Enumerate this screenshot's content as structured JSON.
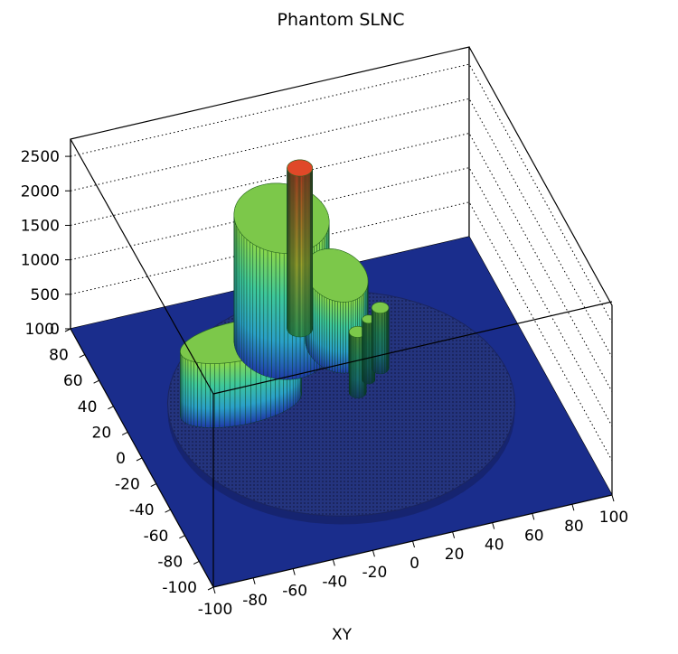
{
  "chart_data": {
    "type": "lego3d",
    "title": "Phantom SLNC",
    "xlabel": "XY",
    "ylabel": "",
    "zlabel": "",
    "x_ticks": [
      "-100",
      "-80",
      "-60",
      "-40",
      "-20",
      "0",
      "20",
      "40",
      "60",
      "80",
      "100"
    ],
    "y_ticks": [
      "-100",
      "-80",
      "-60",
      "-40",
      "-20",
      "0",
      "20",
      "40",
      "60",
      "80",
      "100"
    ],
    "z_ticks": [
      "0",
      "500",
      "1000",
      "1500",
      "2000",
      "2500"
    ],
    "xlim": [
      -100,
      100
    ],
    "ylim": [
      -100,
      100
    ],
    "zlim": [
      0,
      2750
    ],
    "grid": true,
    "colors": {
      "floor": "#1a2d8c",
      "base_disk": "#24347e",
      "low": "#2a46b8",
      "mid": "#30c8c8",
      "high": "#7cd84a",
      "peak": "#d84020",
      "frame": "#000000"
    },
    "structures": [
      {
        "name": "base disk",
        "cx": 0,
        "cy": 0,
        "rx": 82,
        "ry": 82,
        "height": 120
      },
      {
        "name": "upper lobe",
        "cx": -12,
        "cy": 50,
        "rx": 22,
        "ry": 26,
        "height": 1950
      },
      {
        "name": "peak",
        "cx": 0,
        "cy": 58,
        "rx": 6,
        "ry": 6,
        "height": 2450
      },
      {
        "name": "left lobe",
        "cx": -45,
        "cy": 15,
        "rx": 30,
        "ry": 14,
        "height": 1050
      },
      {
        "name": "right lobe",
        "cx": 12,
        "cy": 40,
        "rx": 14,
        "ry": 20,
        "height": 1150
      },
      {
        "name": "column 1",
        "cx": 10,
        "cy": 5,
        "rx": 4,
        "ry": 4,
        "height": 1000
      },
      {
        "name": "column 2",
        "cx": 18,
        "cy": 12,
        "rx": 3,
        "ry": 3,
        "height": 1000
      },
      {
        "name": "column 3",
        "cx": 26,
        "cy": 18,
        "rx": 4,
        "ry": 4,
        "height": 1000
      }
    ]
  }
}
